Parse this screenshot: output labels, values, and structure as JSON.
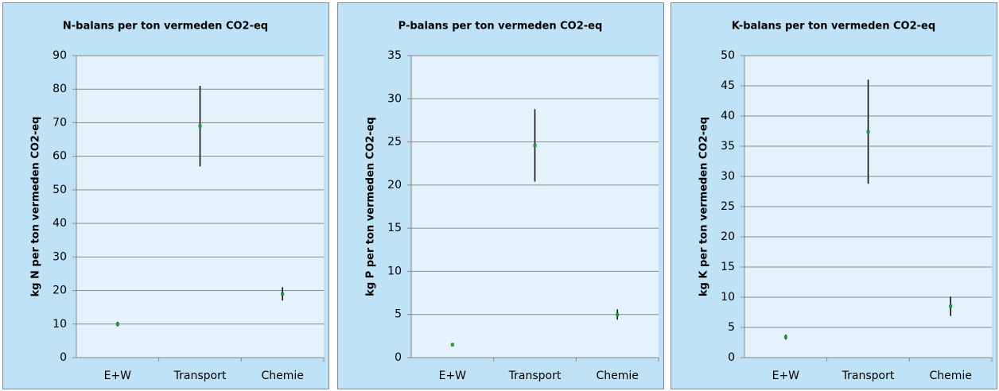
{
  "chart_data": [
    {
      "type": "errorbar",
      "title": "N-balans per ton vermeden CO2-eq",
      "ylabel": "kg N per ton vermeden CO2-eq",
      "categories": [
        "E+W",
        "Transport",
        "Chemie"
      ],
      "values": [
        10,
        69,
        19
      ],
      "errors": [
        0.7,
        12,
        2
      ],
      "color": "#1a9c3c",
      "ylim": [
        0,
        90
      ],
      "yticks": [
        0,
        10,
        20,
        30,
        40,
        50,
        60,
        70,
        80,
        90
      ],
      "grid": true
    },
    {
      "type": "errorbar",
      "title": "P-balans per ton vermeden CO2-eq",
      "ylabel": "kg P per ton vermeden CO2-eq",
      "categories": [
        "E+W",
        "Transport",
        "Chemie"
      ],
      "values": [
        1.5,
        24.6,
        5
      ],
      "errors": [
        0.2,
        4.2,
        0.6
      ],
      "color": "#1a9c3c",
      "ylim": [
        0,
        35
      ],
      "yticks": [
        0,
        5,
        10,
        15,
        20,
        25,
        30,
        35
      ],
      "grid": true
    },
    {
      "type": "errorbar",
      "title": "K-balans per ton vermeden CO2-eq",
      "ylabel": "kg K per ton vermeden CO2-eq",
      "categories": [
        "E+W",
        "Transport",
        "Chemie"
      ],
      "values": [
        3.4,
        37.4,
        8.5
      ],
      "errors": [
        0.4,
        8.6,
        1.6
      ],
      "color": "#1a9c3c",
      "ylim": [
        0,
        50
      ],
      "yticks": [
        0,
        5,
        10,
        15,
        20,
        25,
        30,
        35,
        40,
        45,
        50
      ],
      "grid": true
    }
  ]
}
